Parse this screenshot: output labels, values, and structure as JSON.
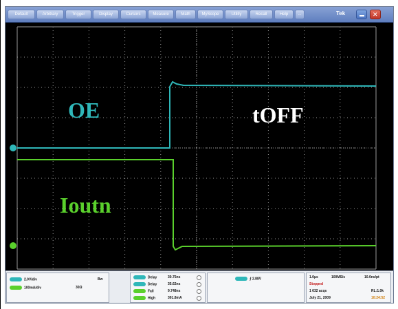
{
  "menubar": {
    "items": [
      "Default",
      "Arbitrary",
      "Trigger",
      "Display",
      "Cursors",
      "Measure",
      "Math",
      "MyScope",
      "Utility",
      "Recall",
      "Help",
      "..."
    ],
    "brand": "Tek"
  },
  "channel_labels": {
    "oe": "OE",
    "toff": "tOFF",
    "ioutn": "Ioutn"
  },
  "colors": {
    "ch1": "#2fb7b9",
    "ch2": "#5ad02c",
    "grid": "#9a9a9a",
    "background": "#000000"
  },
  "status": {
    "ch1_scale": "2.0V/div",
    "ch2_scale": "100mA/div",
    "ch2_coupling": "30Ω",
    "bw_icon": "Bw",
    "measurements": [
      {
        "name": "Delay",
        "value": "30.75ns"
      },
      {
        "name": "Delay",
        "value": "35.62ns"
      },
      {
        "name": "Fall",
        "value": "9.748ns"
      },
      {
        "name": "High",
        "value": "391.8mA"
      }
    ],
    "trigger_level": "2.88V",
    "timebase": "1.0μs",
    "sample_rate": "100MS/s",
    "record_rate": "10.0ns/pt",
    "run_state": "Stopped",
    "acquisitions": "1 632 acqs",
    "record_length": "RL:1.0k",
    "date": "July 21, 2009",
    "time": "10:24:52"
  }
}
